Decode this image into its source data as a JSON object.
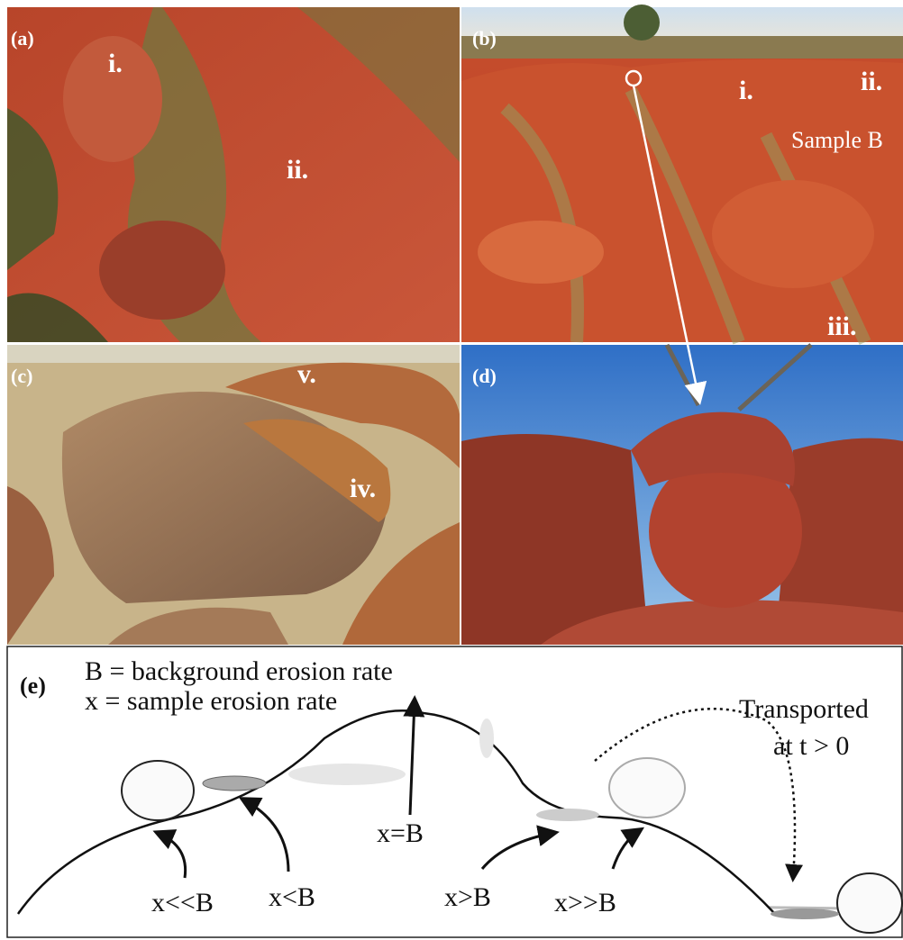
{
  "panels": [
    {
      "label": "(a)",
      "annotations": [
        "i.",
        "ii."
      ]
    },
    {
      "label": "(b)",
      "annotations": [
        "i.",
        "ii.",
        "Sample B",
        "iii."
      ]
    },
    {
      "label": "(c)",
      "annotations": [
        "v.",
        "iv."
      ]
    },
    {
      "label": "(d)"
    }
  ],
  "diagram": {
    "label": "(e)",
    "legend": [
      "B = background erosion rate",
      "x = sample erosion rate"
    ],
    "transport_note": [
      "Transported",
      "at t > 0"
    ],
    "annotations": [
      "x=B",
      "x<<B",
      "x<B",
      "x>B",
      "x>>B"
    ]
  }
}
